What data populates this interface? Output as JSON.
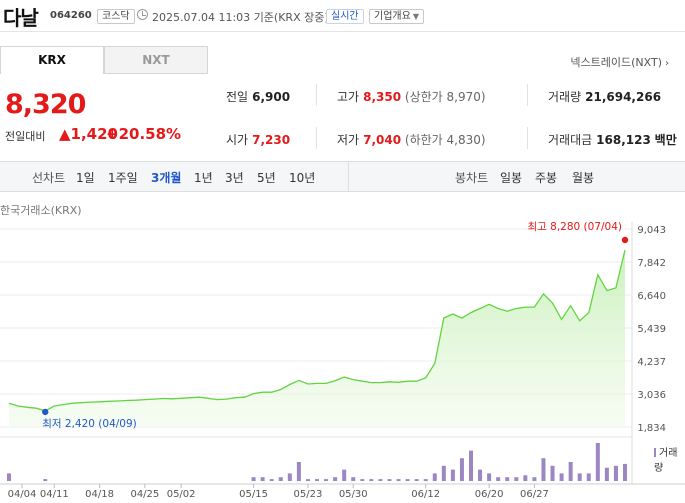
{
  "header": {
    "name": "다날",
    "code": "064260",
    "market": "코스닥",
    "datetime": "2025.07.04 11:03",
    "basis": "기준(KRX 장중)",
    "realtime": "실시간",
    "company_info": "기업개요"
  },
  "tabs": [
    {
      "label": "KRX",
      "active": true
    },
    {
      "label": "NXT",
      "active": false
    }
  ],
  "nxt_link": "넥스트레이드(NXT)",
  "price": {
    "current": "8,320",
    "change_label": "전일대비",
    "change_abs": "1,420",
    "change_pct": "+20.58%"
  },
  "stats": {
    "prev_close": {
      "label": "전일",
      "value": "6,900"
    },
    "open": {
      "label": "시가",
      "value": "7,230"
    },
    "high": {
      "label": "고가",
      "value": "8,350",
      "limit": "(상한가 8,970)"
    },
    "low": {
      "label": "저가",
      "value": "7,040",
      "limit": "(하한가 4,830)"
    },
    "volume": {
      "label": "거래량",
      "value": "21,694,266"
    },
    "amount": {
      "label": "거래대금",
      "value": "168,123",
      "unit": "백만"
    }
  },
  "line_chart": {
    "label": "선차트",
    "periods": [
      "1일",
      "1주일",
      "3개월",
      "1년",
      "3년",
      "5년",
      "10년"
    ],
    "active": "3개월"
  },
  "candle_chart": {
    "label": "봉차트",
    "periods": [
      "일봉",
      "주봉",
      "월봉"
    ]
  },
  "exchange_label": "한국거래소(KRX)",
  "volume_label": "거래량",
  "annotations": {
    "high": "최고 8,280 (07/04)",
    "low": "최저 2,420 (04/09)"
  },
  "colors": {
    "up": "#e41a1a",
    "active": "#2159c8",
    "line": "#62d442",
    "volume": "#9d86c4"
  },
  "chart_data": {
    "type": "area",
    "title": "",
    "y_ticks": [
      "9,043",
      "7,842",
      "6,640",
      "5,439",
      "4,237",
      "3,036",
      "1,834"
    ],
    "ylim": [
      1834,
      9043
    ],
    "x_ticks": [
      "04/04",
      "04/11",
      "04/18",
      "04/25",
      "05/02",
      "05/15",
      "05/23",
      "05/30",
      "06/12",
      "06/20",
      "06/27"
    ],
    "grid": true,
    "price": [
      2700,
      2600,
      2550,
      2520,
      2420,
      2600,
      2650,
      2700,
      2720,
      2740,
      2750,
      2770,
      2780,
      2800,
      2810,
      2830,
      2850,
      2870,
      2860,
      2880,
      2900,
      2920,
      2880,
      2830,
      2850,
      2900,
      2920,
      3050,
      3100,
      3100,
      3200,
      3380,
      3530,
      3400,
      3420,
      3420,
      3520,
      3650,
      3560,
      3500,
      3450,
      3450,
      3480,
      3460,
      3500,
      3500,
      3620,
      4150,
      5800,
      5950,
      5800,
      6000,
      6150,
      6300,
      6150,
      6050,
      6150,
      6200,
      6200,
      6680,
      6350,
      5750,
      6250,
      5700,
      6000,
      7380,
      6800,
      6900,
      8280
    ],
    "volume": [
      0.2,
      0,
      0,
      0,
      0.05,
      0,
      0,
      0,
      0,
      0,
      0,
      0,
      0,
      0,
      0,
      0,
      0,
      0,
      0,
      0,
      0,
      0,
      0,
      0,
      0,
      0,
      0,
      0.1,
      0.1,
      0.05,
      0.1,
      0.2,
      0.5,
      0.05,
      0.05,
      0.05,
      0.1,
      0.3,
      0.1,
      0.05,
      0.05,
      0.05,
      0.05,
      0.05,
      0.05,
      0.05,
      0.05,
      0.2,
      0.4,
      0.3,
      0.6,
      0.8,
      0.3,
      0.2,
      0.1,
      0.1,
      0.1,
      0.15,
      0.1,
      0.6,
      0.4,
      0.2,
      0.5,
      0.2,
      0.2,
      1.0,
      0.35,
      0.4,
      0.45
    ]
  }
}
